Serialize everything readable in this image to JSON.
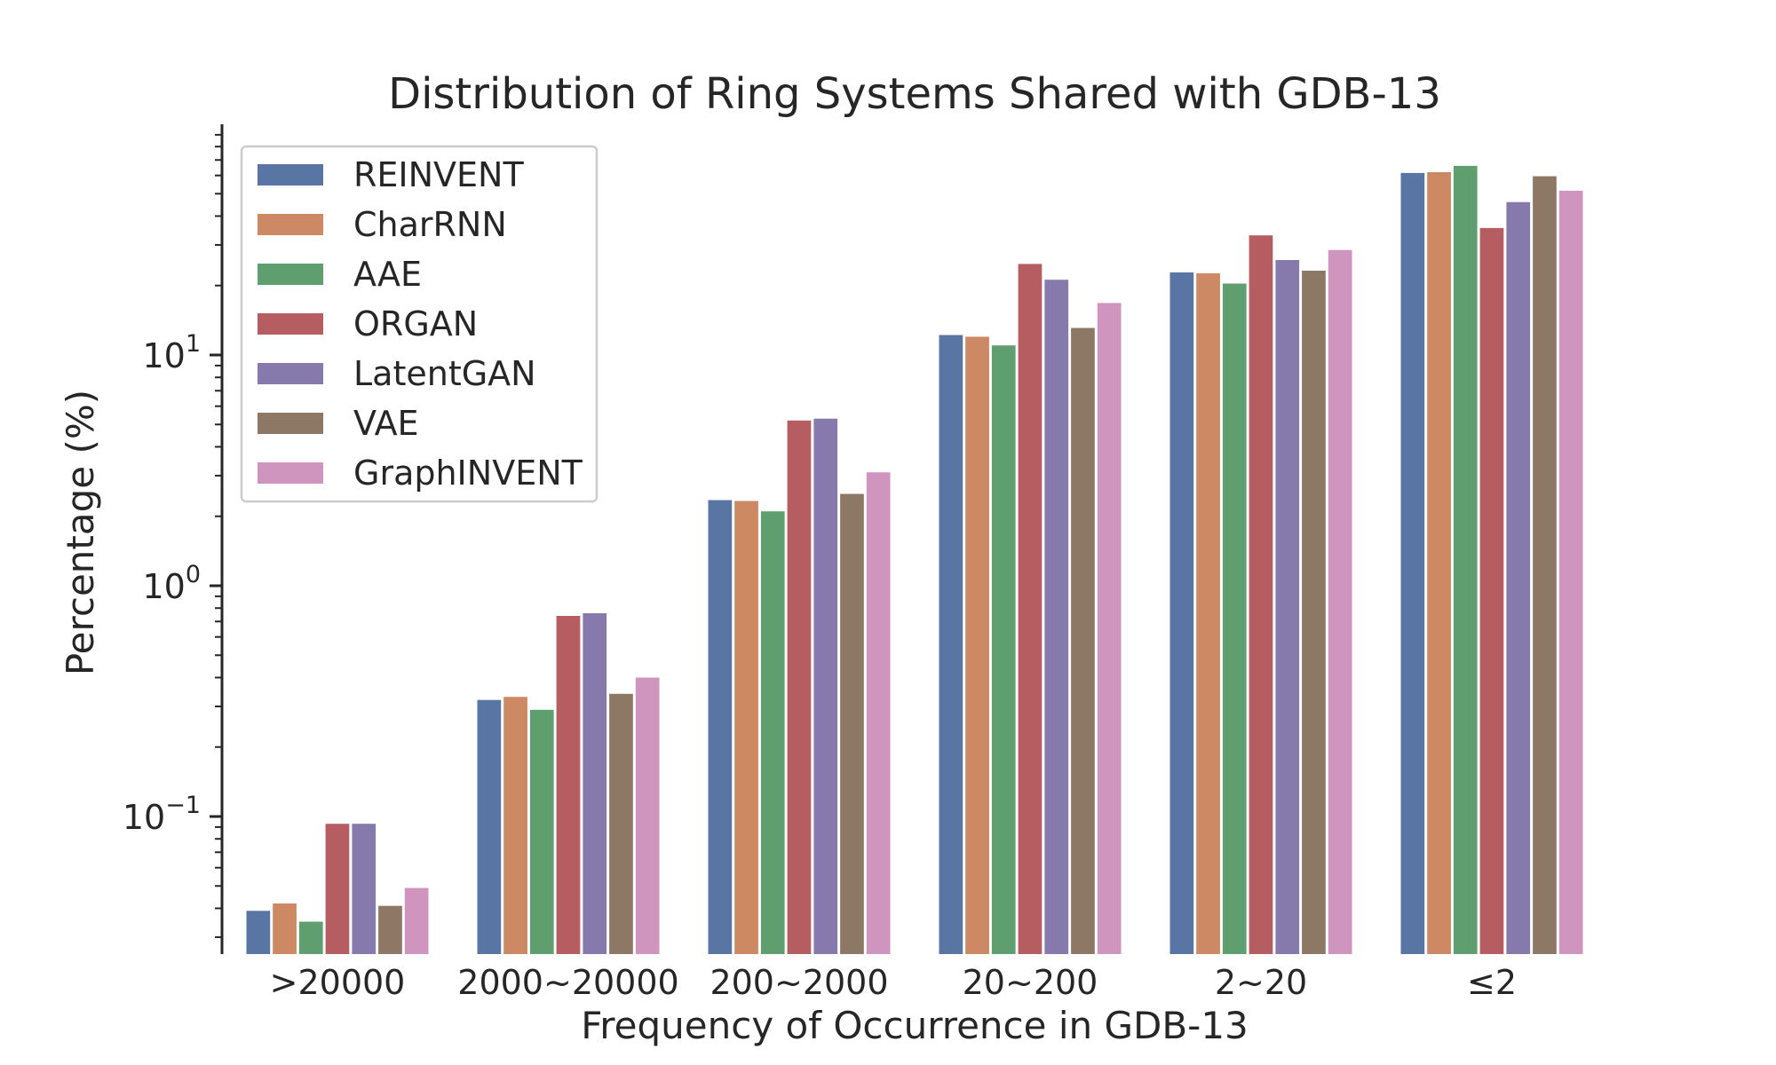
{
  "chart_data": {
    "type": "bar",
    "title": "Distribution of Ring Systems Shared with GDB-13",
    "xlabel": "Frequency of Occurrence in GDB-13",
    "ylabel": "Percentage (%)",
    "yscale": "log",
    "ylim": [
      0.025,
      100
    ],
    "yticks": [
      {
        "base": "10",
        "exp": "−1",
        "value": 0.1
      },
      {
        "base": "10",
        "exp": "0",
        "value": 1
      },
      {
        "base": "10",
        "exp": "1",
        "value": 10
      }
    ],
    "grid": false,
    "legend_position": "upper-left",
    "categories": [
      ">20000",
      "2000~20000",
      "200~2000",
      "20~200",
      "2~20",
      "≤2"
    ],
    "series": [
      {
        "name": "REINVENT",
        "color": "#5875a4",
        "values": [
          0.039,
          0.32,
          2.35,
          12.2,
          22.8,
          61.5
        ]
      },
      {
        "name": "CharRNN",
        "color": "#cc8963",
        "values": [
          0.042,
          0.33,
          2.33,
          12.0,
          22.6,
          62.0
        ]
      },
      {
        "name": "AAE",
        "color": "#5f9e6e",
        "values": [
          0.035,
          0.29,
          2.1,
          11.0,
          20.4,
          66.0
        ]
      },
      {
        "name": "ORGAN",
        "color": "#b55d60",
        "values": [
          0.093,
          0.74,
          5.2,
          24.8,
          33.0,
          35.5
        ]
      },
      {
        "name": "LatentGAN",
        "color": "#857aab",
        "values": [
          0.093,
          0.76,
          5.3,
          21.2,
          25.8,
          46.0
        ]
      },
      {
        "name": "VAE",
        "color": "#8d7866",
        "values": [
          0.041,
          0.34,
          2.5,
          13.1,
          23.2,
          59.5
        ]
      },
      {
        "name": "GraphINVENT",
        "color": "#d095bf",
        "values": [
          0.049,
          0.4,
          3.1,
          16.8,
          28.5,
          51.5
        ]
      }
    ]
  }
}
